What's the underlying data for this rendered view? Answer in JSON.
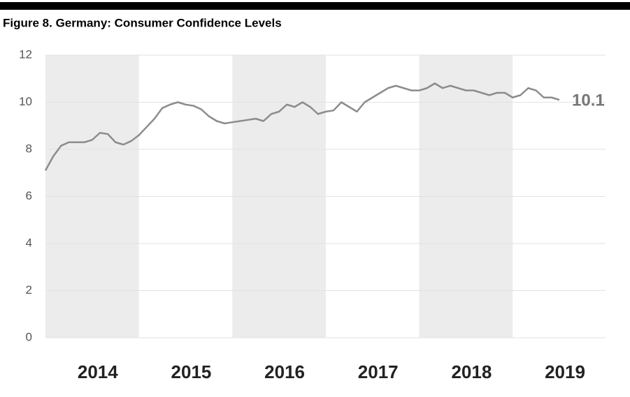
{
  "chart_data": {
    "type": "line",
    "title": "Figure 8. Germany: Consumer Confidence Levels",
    "categories": [
      null,
      null,
      null,
      null,
      null,
      null,
      "2014",
      null,
      null,
      null,
      null,
      null,
      null,
      null,
      null,
      null,
      null,
      null,
      "2015",
      null,
      null,
      null,
      null,
      null,
      null,
      null,
      null,
      null,
      null,
      null,
      "2016",
      null,
      null,
      null,
      null,
      null,
      null,
      null,
      null,
      null,
      null,
      null,
      "2017",
      null,
      null,
      null,
      null,
      null,
      null,
      null,
      null,
      null,
      null,
      null,
      "2018",
      null,
      null,
      null,
      null,
      null,
      null,
      null,
      null,
      null,
      null,
      null,
      "2019"
    ],
    "series": [
      {
        "name": "Consumer Confidence",
        "color": "#8c8c8c",
        "values": [
          7.1,
          7.7,
          8.15,
          8.3,
          8.3,
          8.3,
          8.4,
          8.7,
          8.65,
          8.3,
          8.2,
          8.35,
          8.6,
          8.95,
          9.3,
          9.75,
          9.9,
          10.0,
          9.9,
          9.85,
          9.7,
          9.4,
          9.2,
          9.1,
          9.15,
          9.2,
          9.25,
          9.3,
          9.2,
          9.5,
          9.6,
          9.9,
          9.8,
          10.0,
          9.8,
          9.5,
          9.6,
          9.65,
          10.0,
          9.8,
          9.6,
          10.0,
          10.2,
          10.4,
          10.6,
          10.7,
          10.6,
          10.5,
          10.5,
          10.6,
          10.8,
          10.6,
          10.7,
          10.6,
          10.5,
          10.5,
          10.4,
          10.3,
          10.4,
          10.4,
          10.2,
          10.3,
          10.6,
          10.5,
          10.2,
          10.2,
          10.1
        ]
      }
    ],
    "ylim": [
      0,
      12
    ],
    "yticks": [
      0,
      2,
      4,
      6,
      8,
      10,
      12
    ],
    "grid": true
  }
}
